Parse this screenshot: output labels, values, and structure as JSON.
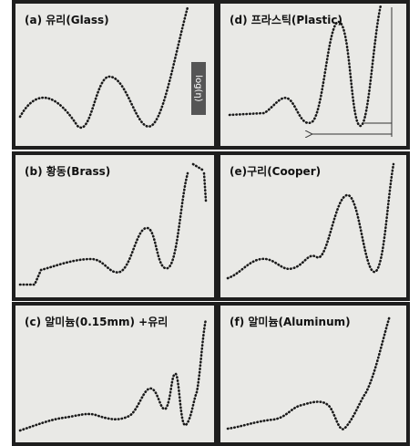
{
  "panels": [
    {
      "label": "(a) 유리(Glass)"
    },
    {
      "label": "(d) 프라스틱(Plastic)"
    },
    {
      "label": "(b) 황동(Brass)"
    },
    {
      "label": "(e)구리(Cooper)"
    },
    {
      "label": "(c) 알미늄(0.15mm) +유리"
    },
    {
      "label": "(f) 알미늄(Aluminum)"
    }
  ],
  "annotation": "log(η)"
}
